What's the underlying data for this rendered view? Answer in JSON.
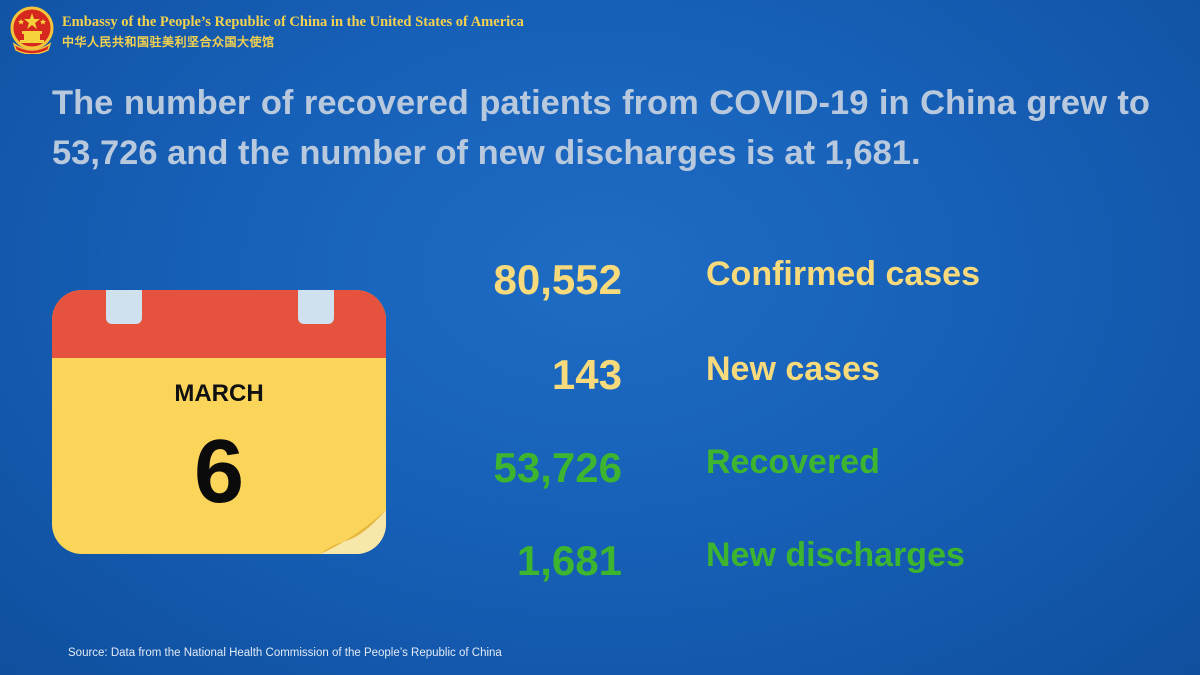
{
  "header": {
    "title_en": "Embassy of the People’s Republic of China in the United States of America",
    "title_zh": "中华人民共和国驻美利坚合众国大使馆"
  },
  "headline": "The number of recovered patients from COVID-19 in China grew to 53,726 and the number of new discharges is at 1,681.",
  "calendar": {
    "month": "MARCH",
    "day": "6"
  },
  "stats": [
    {
      "value": "80,552",
      "label": "Confirmed cases",
      "color": "#f6da7b"
    },
    {
      "value": "143",
      "label": "New cases",
      "color": "#f6da7b"
    },
    {
      "value": "53,726",
      "label": "Recovered",
      "color": "#3db52f"
    },
    {
      "value": "1,681",
      "label": "New discharges",
      "color": "#3db52f"
    }
  ],
  "source": "Source: Data from the National Health Commission of the People’s Republic of China",
  "colors": {
    "background": "#1760b8",
    "calendar_top": "#e5533f",
    "calendar_body": "#fbd55a",
    "accent_yellow": "#f4d14f"
  }
}
